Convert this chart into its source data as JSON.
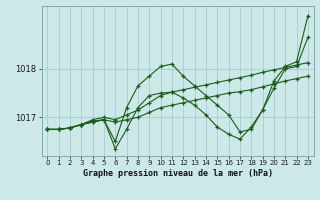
{
  "title": "",
  "xlabel": "Graphe pression niveau de la mer (hPa)",
  "ylabel": "",
  "bg_color": "#cce8e8",
  "grid_color": "#aacccc",
  "line_color": "#1a5c1a",
  "xlim": [
    -0.5,
    23.5
  ],
  "ylim": [
    1016.2,
    1019.3
  ],
  "yticks": [
    1017,
    1018
  ],
  "xticks": [
    0,
    1,
    2,
    3,
    4,
    5,
    6,
    7,
    8,
    9,
    10,
    11,
    12,
    13,
    14,
    15,
    16,
    17,
    18,
    19,
    20,
    21,
    22,
    23
  ],
  "series": [
    [
      1016.75,
      1016.75,
      1016.78,
      1016.85,
      1016.9,
      1016.95,
      1016.5,
      1017.2,
      1017.65,
      1017.85,
      1018.05,
      1018.1,
      1017.85,
      1017.65,
      1017.45,
      1017.25,
      1017.05,
      1016.7,
      1016.75,
      1017.15,
      1017.75,
      1018.05,
      1018.15,
      1019.1
    ],
    [
      1016.75,
      1016.75,
      1016.78,
      1016.85,
      1016.92,
      1016.95,
      1016.35,
      1016.75,
      1017.2,
      1017.45,
      1017.5,
      1017.52,
      1017.4,
      1017.25,
      1017.05,
      1016.8,
      1016.65,
      1016.55,
      1016.8,
      1017.15,
      1017.6,
      1018.0,
      1018.05,
      1018.65
    ],
    [
      1016.75,
      1016.75,
      1016.78,
      1016.85,
      1016.95,
      1017.0,
      1016.95,
      1017.05,
      1017.15,
      1017.3,
      1017.45,
      1017.52,
      1017.57,
      1017.62,
      1017.67,
      1017.72,
      1017.77,
      1017.82,
      1017.87,
      1017.93,
      1017.98,
      1018.03,
      1018.08,
      1018.13
    ],
    [
      1016.75,
      1016.75,
      1016.78,
      1016.85,
      1016.9,
      1016.95,
      1016.9,
      1016.95,
      1017.0,
      1017.1,
      1017.2,
      1017.25,
      1017.3,
      1017.35,
      1017.4,
      1017.45,
      1017.5,
      1017.53,
      1017.57,
      1017.63,
      1017.69,
      1017.75,
      1017.8,
      1017.85
    ]
  ]
}
